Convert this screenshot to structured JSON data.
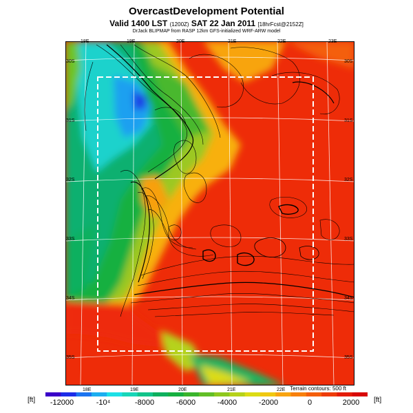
{
  "header": {
    "title": "OvercastDevelopment Potential",
    "valid_main": "Valid 1400 LST",
    "valid_small": "(1200Z)",
    "valid_date": "SAT 22 Jan 2011",
    "valid_fcst": "[18hrFcst@2152Z]",
    "credit": "DrJack BLIPMAP from RASP 12km GFS-initialized WRF-ARW model"
  },
  "map": {
    "lon_labels_top": [
      "18E",
      "19E",
      "20E",
      "21E",
      "22E",
      "23E"
    ],
    "lon_labels_bottom": [
      "18E",
      "19E",
      "20E",
      "21E",
      "22E"
    ],
    "lat_labels_left": [
      "30S",
      "31S",
      "32S",
      "33S",
      "34S",
      "35S"
    ],
    "lat_labels_right": [
      "30S",
      "31S",
      "32S",
      "33S",
      "34S",
      "35S"
    ],
    "terrain_note": "Terrain contours: 500 ft"
  },
  "colorbar": {
    "unit_left": "[ft]",
    "unit_right": "[ft]",
    "ticks": [
      {
        "label": "-12000",
        "value": -12000
      },
      {
        "label": "-10⁴",
        "value": -10000
      },
      {
        "label": "-8000",
        "value": -8000
      },
      {
        "label": "-6000",
        "value": -6000
      },
      {
        "label": "-4000",
        "value": -4000
      },
      {
        "label": "-2000",
        "value": -2000
      },
      {
        "label": "0",
        "value": 0
      },
      {
        "label": "2000",
        "value": 2000
      }
    ],
    "colors": [
      "#3a00c8",
      "#1c2ce8",
      "#1c74f0",
      "#1caef0",
      "#1ce0e6",
      "#18d6b8",
      "#12c48a",
      "#0eb05e",
      "#16b040",
      "#3ab42c",
      "#62be26",
      "#8ec81e",
      "#b6d21a",
      "#dcdc14",
      "#f0c810",
      "#f8a410",
      "#f8800c",
      "#f45e0a",
      "#ee3c08",
      "#e41c06",
      "#d80606"
    ],
    "min": -12800,
    "max": 2800
  }
}
